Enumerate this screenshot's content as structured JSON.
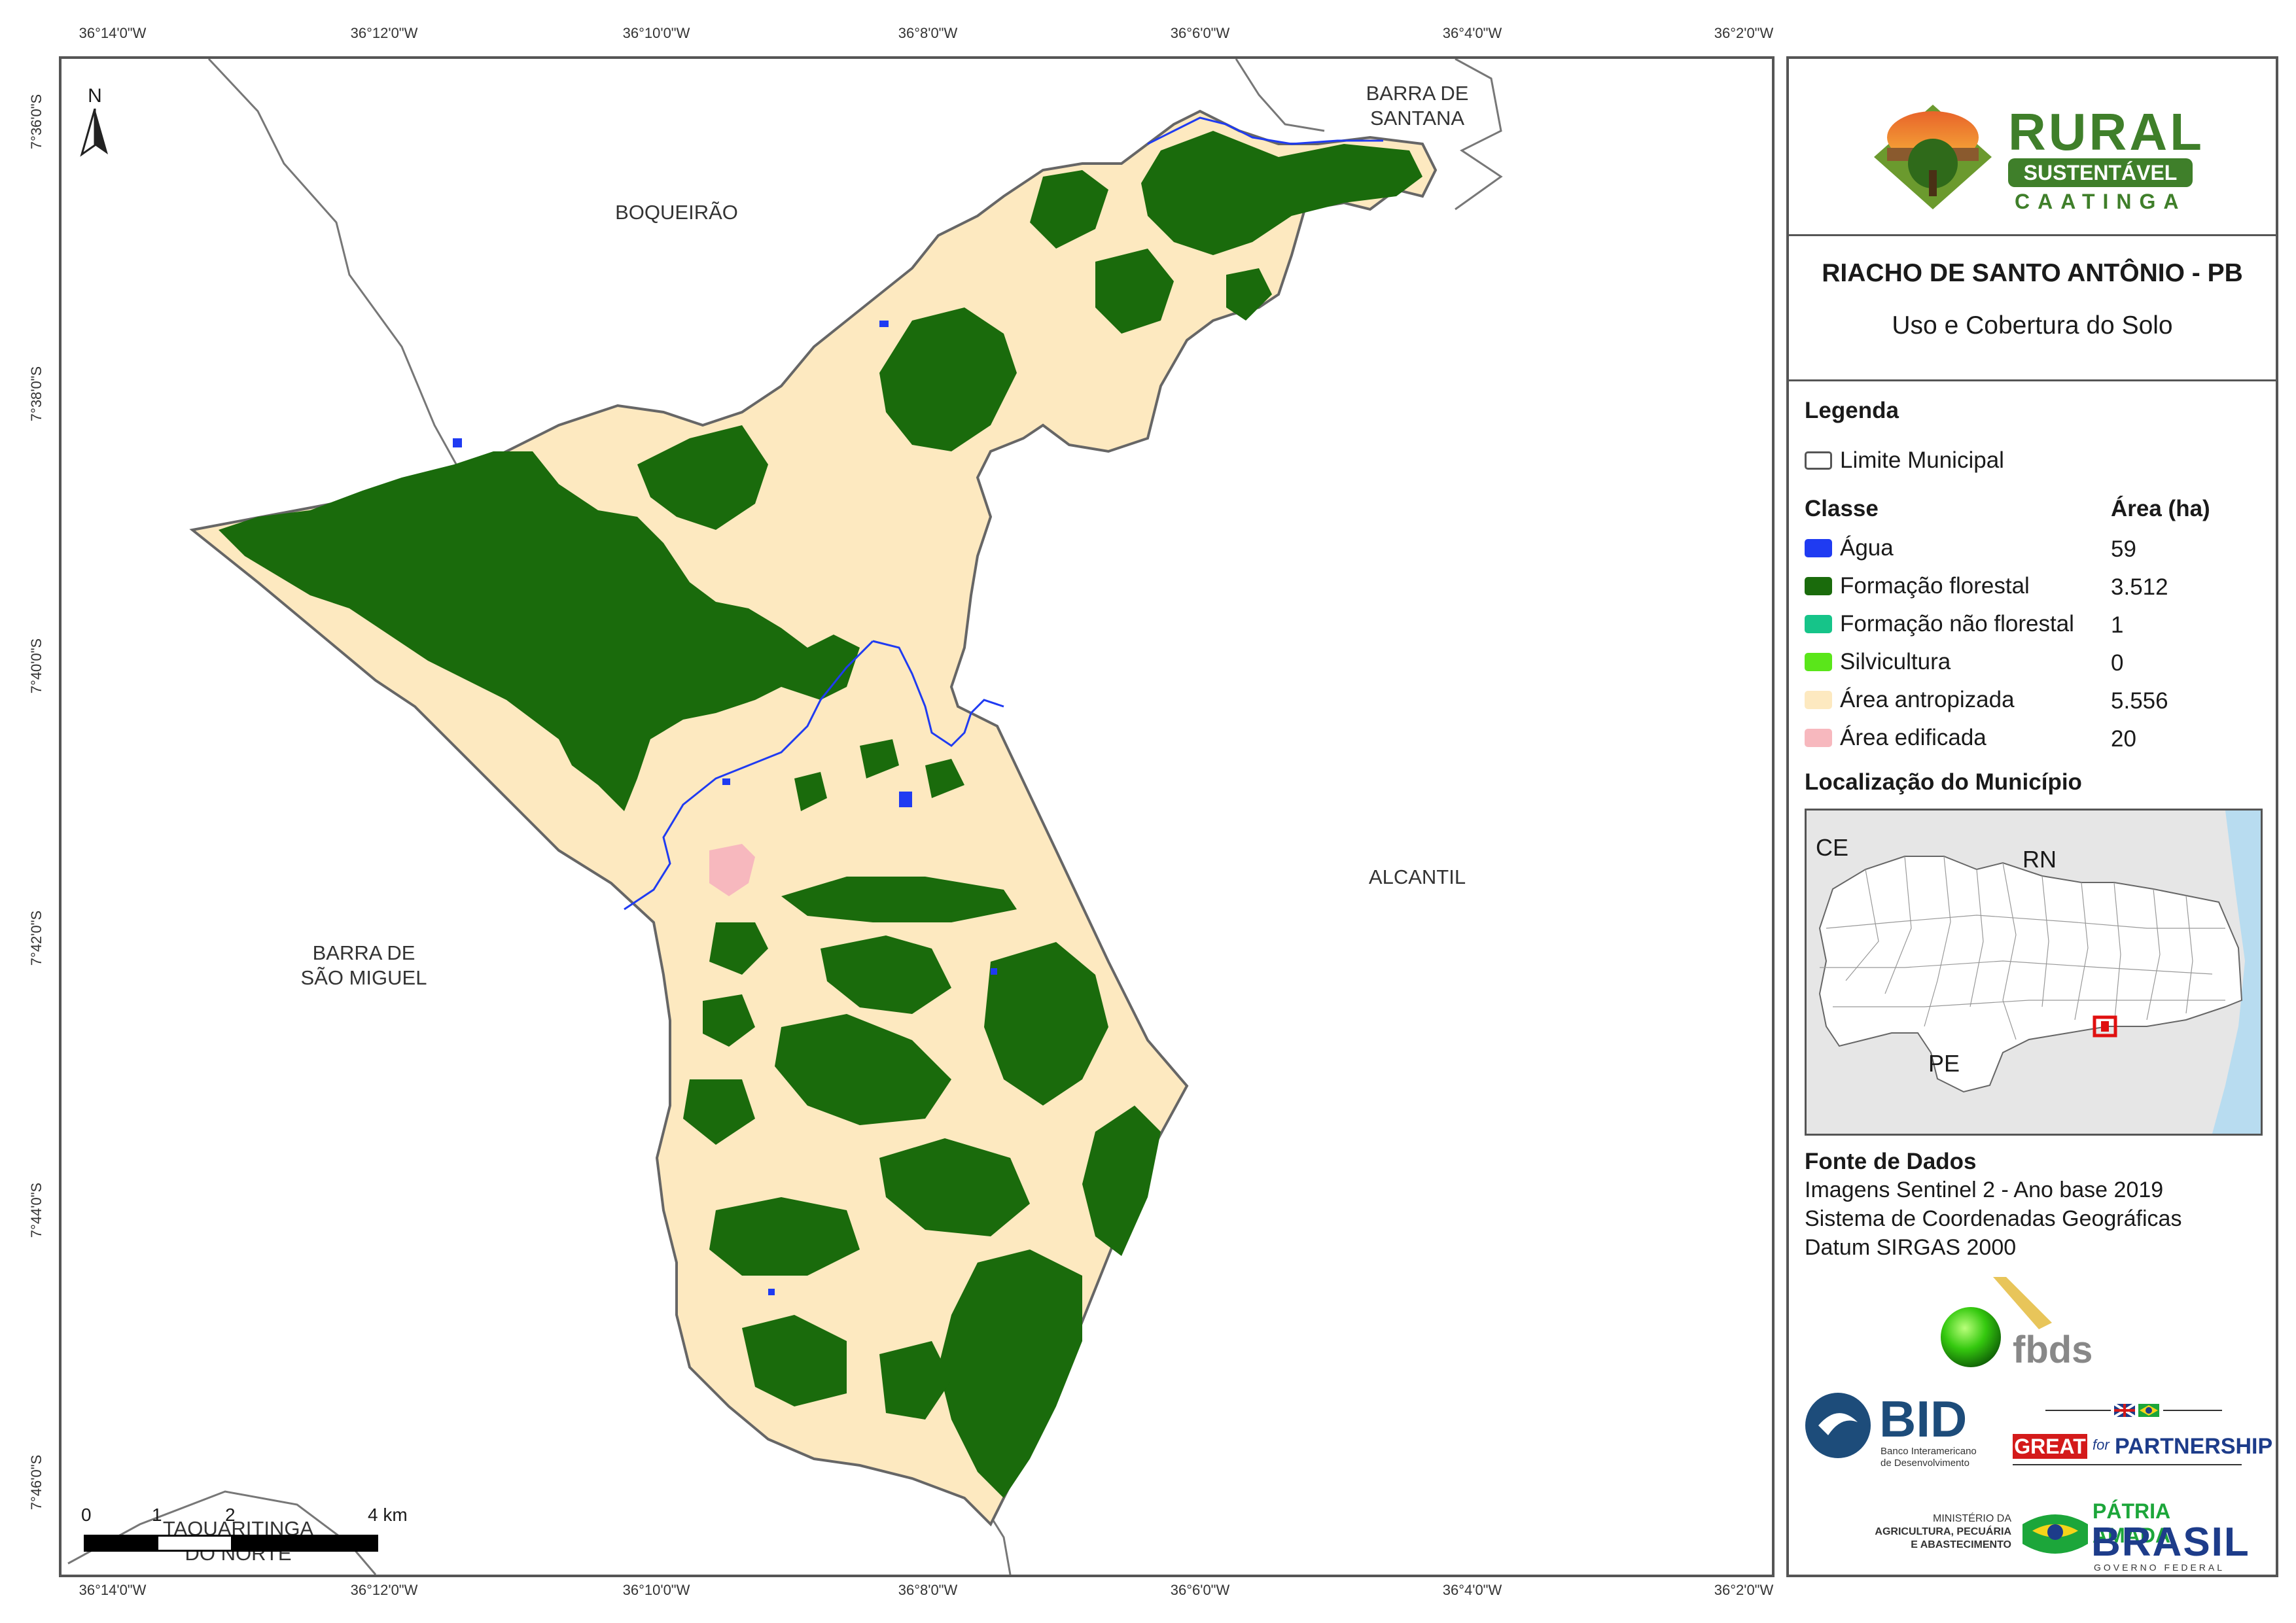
{
  "map": {
    "lon_labels": [
      "36°14'0\"W",
      "36°12'0\"W",
      "36°10'0\"W",
      "36°8'0\"W",
      "36°6'0\"W",
      "36°4'0\"W",
      "36°2'0\"W"
    ],
    "lat_labels": [
      "7°36'0\"S",
      "7°38'0\"S",
      "7°40'0\"S",
      "7°42'0\"S",
      "7°44'0\"S",
      "7°46'0\"S"
    ],
    "north_label": "N",
    "places": {
      "barra_de_santana": [
        "BARRA DE",
        "SANTANA"
      ],
      "boqueirao": "BOQUEIRÃO",
      "alcantil": "ALCANTIL",
      "barra_de_sao_miguel": [
        "BARRA DE",
        "SÃO MIGUEL"
      ],
      "taquaritinga": [
        "TAQUARITINGA",
        "DO NORTE"
      ]
    },
    "scale_labels": [
      "0",
      "1",
      "2",
      "4 km"
    ]
  },
  "panel": {
    "logo": {
      "word1": "RURAL",
      "word2": "SUSTENTÁVEL",
      "word3": "CAATINGA"
    },
    "title": "RIACHO DE SANTO ANTÔNIO - PB",
    "subtitle": "Uso e Cobertura do Solo",
    "legend": {
      "heading": "Legenda",
      "boundary_label": "Limite Municipal",
      "class_header": "Classe",
      "area_header": "Área (ha)",
      "classes": [
        {
          "label": "Água",
          "area": "59",
          "color": "#1f3bf2"
        },
        {
          "label": "Formação florestal",
          "area": "3.512",
          "color": "#1a6b0c"
        },
        {
          "label": "Formação não florestal",
          "area": "1",
          "color": "#16c489"
        },
        {
          "label": "Silvicultura",
          "area": "0",
          "color": "#5ae61a"
        },
        {
          "label": "Área antropizada",
          "area": "5.556",
          "color": "#fde9c0"
        },
        {
          "label": "Área edificada",
          "area": "20",
          "color": "#f7b8be"
        }
      ]
    },
    "location": {
      "heading": "Localização do Município",
      "labels": {
        "ce": "CE",
        "rn": "RN",
        "pe": "PE"
      }
    },
    "source": {
      "heading": "Fonte de Dados",
      "lines": [
        "Imagens Sentinel 2 - Ano base 2019",
        "Sistema de Coordenadas Geográficas",
        "Datum SIRGAS 2000"
      ]
    },
    "logos": {
      "fbds": "fbds",
      "bid": "BID",
      "bid_sub": [
        "Banco Interamericano",
        "de Desenvolvimento"
      ],
      "great": "GREAT",
      "great_for": "for",
      "great_partner": "PARTNERSHIP",
      "ministry": [
        "MINISTÉRIO DA",
        "AGRICULTURA, PECUÁRIA",
        "E ABASTECIMENTO"
      ],
      "patria": "PÁTRIA AMADA",
      "brasil": "BRASIL",
      "gov": "GOVERNO FEDERAL"
    }
  }
}
